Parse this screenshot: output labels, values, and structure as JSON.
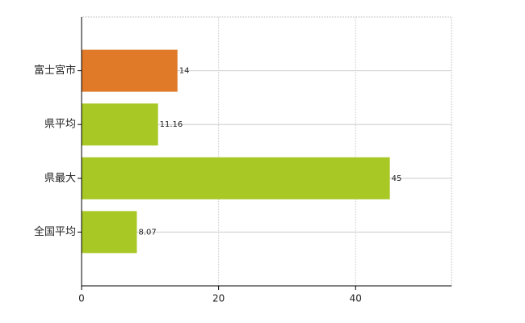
{
  "chart_data": {
    "type": "barh",
    "categories": [
      "富士宮市",
      "県平均",
      "県最大",
      "全国平均"
    ],
    "values": [
      14,
      11.16,
      45,
      8.07
    ],
    "colors": [
      "#e07a28",
      "#a8c826",
      "#a8c826",
      "#a8c826"
    ],
    "xlim": [
      0,
      54
    ],
    "xticks": [
      0,
      20,
      40
    ],
    "grid": true
  }
}
